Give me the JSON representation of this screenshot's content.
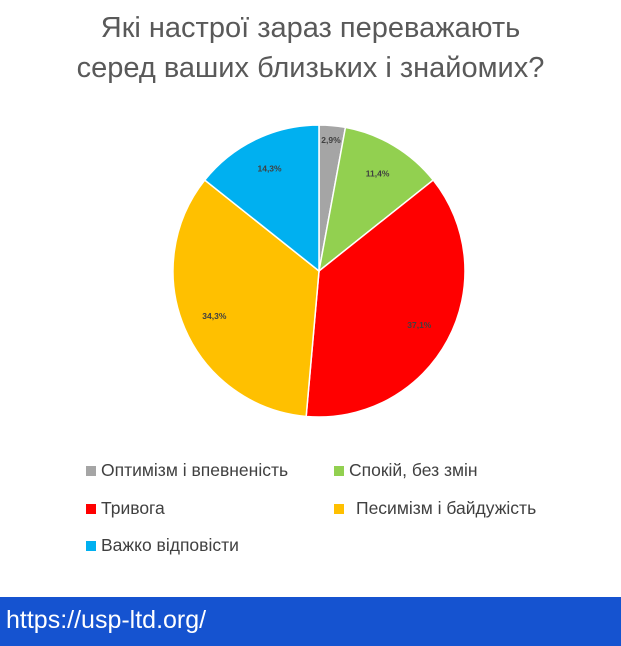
{
  "chart_data": {
    "type": "pie",
    "title": "Які настрої зараз переважають серед ваших близьких і знайомих?",
    "title_lines": [
      "Які настрої зараз переважають",
      "серед ваших близьких і знайомих?"
    ],
    "categories": [
      "Оптимізм і впевненість",
      "Спокій, без змін",
      "Тривога",
      "Песимізм і байдужість",
      "Важко відповісти"
    ],
    "values": [
      2.9,
      11.4,
      37.1,
      34.3,
      14.3
    ],
    "data_labels": [
      "2,9%",
      "11,4%",
      "37,1%",
      "34,3%",
      "14,3%"
    ],
    "colors": [
      "#a5a5a5",
      "#92d050",
      "#ff0000",
      "#ffc000",
      "#00b0f0"
    ],
    "legend_placement": "bottom"
  },
  "footer": {
    "url": "https://usp-ltd.org/",
    "color": "#1553d0"
  }
}
